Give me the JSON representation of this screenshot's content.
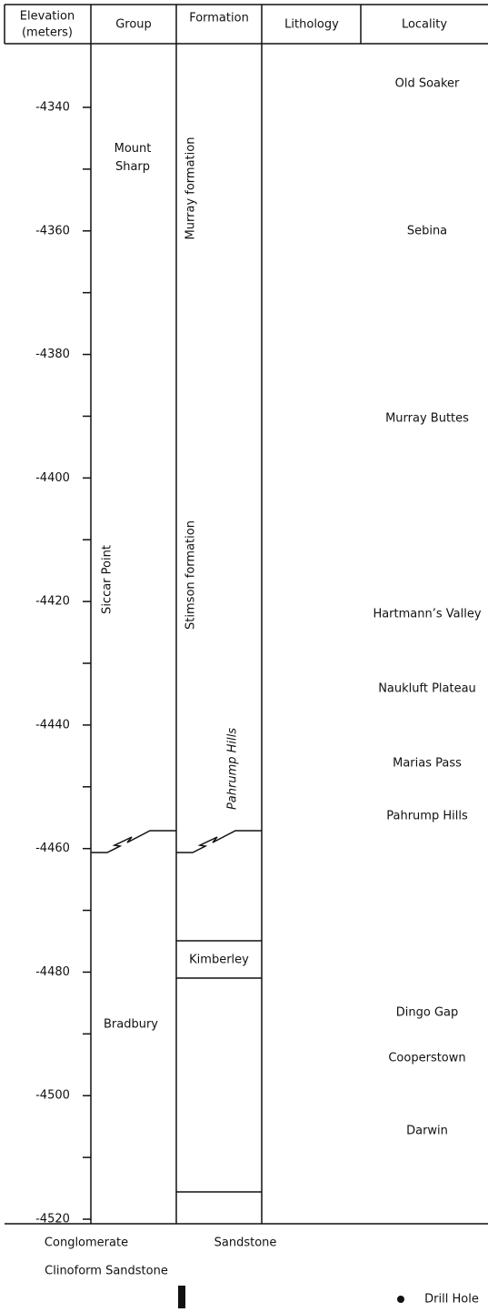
{
  "header": {
    "columns": [
      {
        "label": "Elevation",
        "unit": "(meters)"
      },
      {
        "label": "Group"
      },
      {
        "label": "Formation"
      },
      {
        "label": "Lithology"
      },
      {
        "label": "Locality"
      }
    ]
  },
  "elevation_ticks": [
    -4340,
    -4360,
    -4380,
    -4400,
    -4420,
    -4440,
    -4460,
    -4480,
    -4500,
    -4520
  ],
  "groups": [
    "Mount Sharp",
    "Siccar Point",
    "Bradbury"
  ],
  "formations": [
    "Murray formation",
    "Stimson formation",
    "Pahrump Hills",
    "Kimberley"
  ],
  "localities": [
    "Old Soaker",
    "Sebina",
    "Murray Buttes",
    "Hartmann’s Valley",
    "Naukluft Plateau",
    "Marias Pass",
    "Pahrump Hills",
    "Dingo Gap",
    "Cooperstown",
    "Darwin"
  ],
  "legend": [
    "Conglomerate",
    "Sandstone",
    "Clinoform Sandstone",
    "Drill Hole"
  ]
}
